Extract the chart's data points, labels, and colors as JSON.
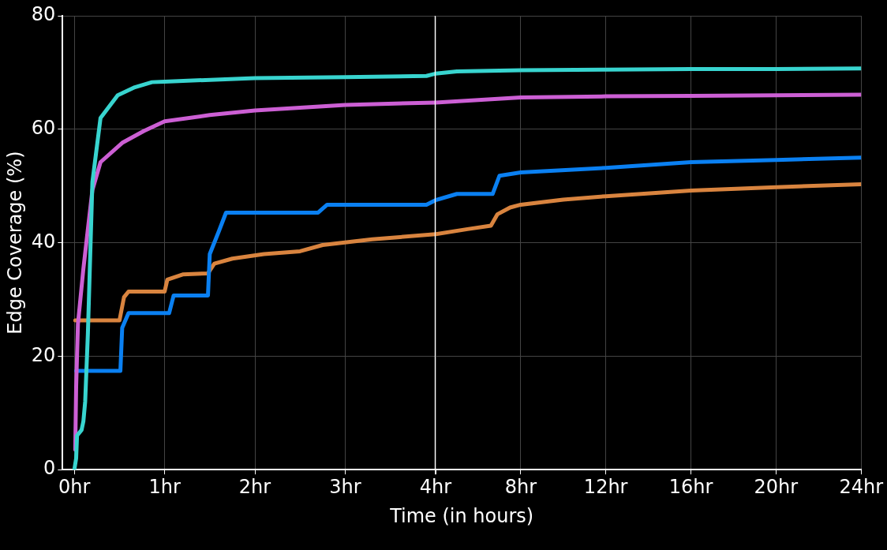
{
  "chart_data": [
    {
      "type": "line",
      "xlabel": "Time (in hours)",
      "ylabel": "Edge Coverage (%)",
      "xlim": [
        -0.13,
        4
      ],
      "ylim": [
        0,
        80
      ],
      "xticks": [
        {
          "value": 0,
          "label": "0hr"
        },
        {
          "value": 1,
          "label": "1hr"
        },
        {
          "value": 2,
          "label": "2hr"
        },
        {
          "value": 3,
          "label": "3hr"
        },
        {
          "value": 4,
          "label": "4hr"
        }
      ],
      "yticks": [
        0,
        20,
        40,
        60,
        80
      ],
      "grid": true,
      "ref_lines": [
        {
          "axis": "x",
          "value": 4,
          "color": "#ffffff"
        }
      ],
      "series": [
        {
          "color": "#38d4cf",
          "x": [
            0,
            0.02,
            0.03,
            0.08,
            0.1,
            0.12,
            0.15,
            0.2,
            0.29,
            0.48,
            0.67,
            0.86,
            1,
            2,
            3,
            3.9,
            4
          ],
          "values": [
            0,
            2,
            6,
            7,
            8.5,
            12,
            24,
            50.7,
            62,
            66,
            67.4,
            68.3,
            68.4,
            69,
            69.2,
            69.4,
            69.8
          ]
        },
        {
          "color": "#cc5fd4",
          "x": [
            0.01,
            0.02,
            0.04,
            0.1,
            0.15,
            0.2,
            0.29,
            0.53,
            0.77,
            1,
            1.5,
            2,
            3,
            4
          ],
          "values": [
            3.5,
            14.6,
            25.7,
            35.4,
            42.4,
            49.3,
            54.2,
            57.6,
            59.7,
            61.4,
            62.5,
            63.3,
            64.3,
            64.7
          ]
        },
        {
          "color": "#0a80f2",
          "x": [
            0.02,
            0.51,
            0.53,
            0.6,
            1.05,
            1.1,
            1.48,
            1.5,
            1.6,
            1.68,
            2.7,
            2.8,
            3.9,
            4
          ],
          "values": [
            17.4,
            17.4,
            25,
            27.6,
            27.6,
            30.7,
            30.7,
            38,
            42,
            45.3,
            45.3,
            46.7,
            46.7,
            47.5
          ]
        },
        {
          "color": "#d9843f",
          "x": [
            0.01,
            0.5,
            0.55,
            0.6,
            1,
            1.03,
            1.2,
            1.48,
            1.55,
            1.75,
            2.1,
            2.5,
            2.75,
            3.3,
            4
          ],
          "values": [
            26.3,
            26.3,
            30.4,
            31.4,
            31.4,
            33.5,
            34.4,
            34.6,
            36.3,
            37.2,
            38,
            38.5,
            39.6,
            40.6,
            41.5
          ]
        }
      ]
    },
    {
      "type": "line",
      "xlim": [
        4,
        24
      ],
      "ylim": [
        0,
        80
      ],
      "tick_labels": "x",
      "xticks": [
        {
          "value": 4,
          "label": null
        },
        {
          "value": 8,
          "label": "8hr"
        },
        {
          "value": 12,
          "label": "12hr"
        },
        {
          "value": 16,
          "label": "16hr"
        },
        {
          "value": 20,
          "label": "20hr"
        },
        {
          "value": 24,
          "label": "24hr"
        }
      ],
      "yticks": [
        0,
        20,
        40,
        60,
        80
      ],
      "grid": true,
      "series": [
        {
          "color": "#38d4cf",
          "x": [
            4,
            5,
            8,
            12,
            16,
            20,
            24
          ],
          "values": [
            69.8,
            70.2,
            70.4,
            70.5,
            70.6,
            70.6,
            70.7
          ]
        },
        {
          "color": "#cc5fd4",
          "x": [
            4,
            8,
            12,
            16,
            20,
            24
          ],
          "values": [
            64.7,
            65.6,
            65.8,
            65.9,
            66,
            66.1
          ]
        },
        {
          "color": "#0a80f2",
          "x": [
            4,
            5,
            6.68,
            7,
            8,
            12,
            16,
            20,
            24
          ],
          "values": [
            47.5,
            48.6,
            48.6,
            51.8,
            52.4,
            53.2,
            54.2,
            54.6,
            55
          ]
        },
        {
          "color": "#d9843f",
          "x": [
            4,
            5.5,
            6.6,
            6.9,
            7.5,
            8,
            10,
            12,
            16,
            20,
            24
          ],
          "values": [
            41.5,
            42.4,
            43,
            45,
            46.2,
            46.7,
            47.6,
            48.2,
            49.2,
            49.8,
            50.3
          ]
        }
      ]
    }
  ]
}
